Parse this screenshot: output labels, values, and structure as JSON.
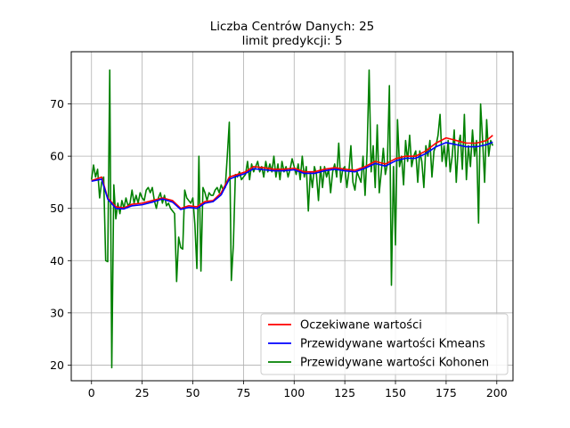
{
  "chart_data": {
    "type": "line",
    "title": "Liczba Centrów Danych: 25",
    "subtitle": "limit predykcji: 5",
    "xlabel": "",
    "ylabel": "",
    "xlim": [
      -10,
      208
    ],
    "ylim": [
      17,
      80
    ],
    "xticks": [
      0,
      25,
      50,
      75,
      100,
      125,
      150,
      175,
      200
    ],
    "yticks": [
      20,
      30,
      40,
      50,
      60,
      70
    ],
    "grid": true,
    "legend_position": "bottom-right",
    "series": [
      {
        "name": "Oczekiwane wartości",
        "color": "#ff0000",
        "points": [
          [
            0,
            55.3
          ],
          [
            5,
            56
          ],
          [
            8,
            52
          ],
          [
            12,
            50.3
          ],
          [
            16,
            50.1
          ],
          [
            20,
            50.8
          ],
          [
            25,
            51
          ],
          [
            30,
            51.5
          ],
          [
            35,
            52
          ],
          [
            40,
            51.5
          ],
          [
            44,
            50
          ],
          [
            48,
            50.5
          ],
          [
            52,
            50.3
          ],
          [
            56,
            51.3
          ],
          [
            60,
            51.5
          ],
          [
            64,
            53
          ],
          [
            68,
            56
          ],
          [
            72,
            56.5
          ],
          [
            76,
            57
          ],
          [
            80,
            58
          ],
          [
            85,
            57.8
          ],
          [
            90,
            57.5
          ],
          [
            95,
            57.5
          ],
          [
            100,
            57.7
          ],
          [
            105,
            57
          ],
          [
            110,
            57
          ],
          [
            115,
            57.5
          ],
          [
            120,
            57.8
          ],
          [
            125,
            57.5
          ],
          [
            130,
            57.3
          ],
          [
            135,
            58
          ],
          [
            140,
            59
          ],
          [
            145,
            58.5
          ],
          [
            150,
            59.5
          ],
          [
            155,
            60
          ],
          [
            160,
            60
          ],
          [
            165,
            61
          ],
          [
            170,
            62.5
          ],
          [
            175,
            63.5
          ],
          [
            180,
            63
          ],
          [
            185,
            62.5
          ],
          [
            190,
            62.5
          ],
          [
            195,
            63
          ],
          [
            198,
            64
          ]
        ]
      },
      {
        "name": "Przewidywane wartości Kmeans",
        "color": "#0000ff",
        "points": [
          [
            0,
            55.2
          ],
          [
            5,
            55.6
          ],
          [
            8,
            51.8
          ],
          [
            12,
            50
          ],
          [
            16,
            49.9
          ],
          [
            20,
            50.5
          ],
          [
            25,
            50.7
          ],
          [
            30,
            51.2
          ],
          [
            35,
            51.8
          ],
          [
            40,
            51.2
          ],
          [
            44,
            49.8
          ],
          [
            48,
            50.2
          ],
          [
            52,
            50
          ],
          [
            56,
            51
          ],
          [
            60,
            51.3
          ],
          [
            64,
            52.6
          ],
          [
            68,
            55.6
          ],
          [
            72,
            56.2
          ],
          [
            76,
            56.7
          ],
          [
            80,
            57.6
          ],
          [
            85,
            57.4
          ],
          [
            90,
            57.2
          ],
          [
            95,
            57.2
          ],
          [
            100,
            57.4
          ],
          [
            105,
            56.7
          ],
          [
            110,
            56.7
          ],
          [
            115,
            57.2
          ],
          [
            120,
            57.5
          ],
          [
            125,
            57.2
          ],
          [
            130,
            57
          ],
          [
            135,
            57.7
          ],
          [
            140,
            58.6
          ],
          [
            145,
            58.1
          ],
          [
            150,
            59.1
          ],
          [
            155,
            59.6
          ],
          [
            160,
            59.6
          ],
          [
            165,
            60.5
          ],
          [
            170,
            61.8
          ],
          [
            175,
            62.6
          ],
          [
            180,
            62.2
          ],
          [
            185,
            61.8
          ],
          [
            190,
            61.8
          ],
          [
            195,
            62.2
          ],
          [
            198,
            62.7
          ]
        ]
      },
      {
        "name": "Przewidywane wartości Kohonen",
        "color": "#008000",
        "points": [
          [
            0,
            55.5
          ],
          [
            1,
            58.3
          ],
          [
            2,
            56
          ],
          [
            3,
            57.5
          ],
          [
            4,
            52
          ],
          [
            5,
            55
          ],
          [
            6,
            56
          ],
          [
            7,
            40
          ],
          [
            8,
            39.8
          ],
          [
            9,
            76.5
          ],
          [
            10,
            19.5
          ],
          [
            11,
            54.5
          ],
          [
            12,
            48
          ],
          [
            13,
            51
          ],
          [
            14,
            49
          ],
          [
            15,
            51.5
          ],
          [
            16,
            50
          ],
          [
            17,
            52
          ],
          [
            18,
            50.5
          ],
          [
            19,
            51
          ],
          [
            20,
            53.5
          ],
          [
            21,
            51
          ],
          [
            22,
            52.5
          ],
          [
            23,
            51
          ],
          [
            24,
            53
          ],
          [
            25,
            52
          ],
          [
            26,
            51.5
          ],
          [
            27,
            53.5
          ],
          [
            28,
            54
          ],
          [
            29,
            53
          ],
          [
            30,
            54
          ],
          [
            31,
            51.5
          ],
          [
            32,
            50
          ],
          [
            33,
            52
          ],
          [
            34,
            53
          ],
          [
            35,
            51
          ],
          [
            36,
            52.5
          ],
          [
            37,
            50.5
          ],
          [
            38,
            51
          ],
          [
            39,
            50
          ],
          [
            40,
            49.5
          ],
          [
            41,
            49
          ],
          [
            42,
            36
          ],
          [
            43,
            44.5
          ],
          [
            44,
            42.5
          ],
          [
            45,
            42.2
          ],
          [
            46,
            53.5
          ],
          [
            47,
            52
          ],
          [
            48,
            51.5
          ],
          [
            49,
            51
          ],
          [
            50,
            52
          ],
          [
            51,
            47
          ],
          [
            52,
            38.5
          ],
          [
            53,
            60
          ],
          [
            54,
            38
          ],
          [
            55,
            54
          ],
          [
            56,
            53
          ],
          [
            57,
            51.5
          ],
          [
            58,
            53
          ],
          [
            59,
            52.5
          ],
          [
            60,
            52.5
          ],
          [
            61,
            53.5
          ],
          [
            62,
            54
          ],
          [
            63,
            53
          ],
          [
            64,
            54.5
          ],
          [
            65,
            53.5
          ],
          [
            66,
            54
          ],
          [
            67,
            60
          ],
          [
            68,
            66.5
          ],
          [
            69,
            36.2
          ],
          [
            70,
            43
          ],
          [
            71,
            56.5
          ],
          [
            72,
            56
          ],
          [
            73,
            57
          ],
          [
            74,
            55.5
          ],
          [
            75,
            56
          ],
          [
            76,
            56.5
          ],
          [
            77,
            59
          ],
          [
            78,
            55.5
          ],
          [
            79,
            58.5
          ],
          [
            80,
            57
          ],
          [
            81,
            58
          ],
          [
            82,
            59
          ],
          [
            83,
            57
          ],
          [
            84,
            58
          ],
          [
            85,
            56
          ],
          [
            86,
            59
          ],
          [
            87,
            57
          ],
          [
            88,
            58.5
          ],
          [
            89,
            57
          ],
          [
            90,
            60
          ],
          [
            91,
            56
          ],
          [
            92,
            58.5
          ],
          [
            93,
            55.5
          ],
          [
            94,
            59
          ],
          [
            95,
            57
          ],
          [
            96,
            58
          ],
          [
            97,
            56
          ],
          [
            98,
            57.5
          ],
          [
            99,
            59.5
          ],
          [
            100,
            58
          ],
          [
            101,
            56.5
          ],
          [
            102,
            58.5
          ],
          [
            103,
            55.5
          ],
          [
            104,
            60
          ],
          [
            105,
            56
          ],
          [
            106,
            58
          ],
          [
            107,
            49.5
          ],
          [
            108,
            57
          ],
          [
            109,
            54
          ],
          [
            110,
            58
          ],
          [
            111,
            56.5
          ],
          [
            112,
            51.5
          ],
          [
            113,
            58
          ],
          [
            114,
            54
          ],
          [
            115,
            58
          ],
          [
            116,
            56
          ],
          [
            117,
            57.5
          ],
          [
            118,
            53
          ],
          [
            119,
            57
          ],
          [
            120,
            58.5
          ],
          [
            121,
            56
          ],
          [
            122,
            62.5
          ],
          [
            123,
            55
          ],
          [
            124,
            57.5
          ],
          [
            125,
            58
          ],
          [
            126,
            54
          ],
          [
            127,
            57
          ],
          [
            128,
            62
          ],
          [
            129,
            55
          ],
          [
            130,
            53.5
          ],
          [
            131,
            57
          ],
          [
            132,
            56
          ],
          [
            133,
            55
          ],
          [
            134,
            60
          ],
          [
            135,
            52.5
          ],
          [
            136,
            61
          ],
          [
            137,
            76.5
          ],
          [
            138,
            57
          ],
          [
            139,
            62
          ],
          [
            140,
            54
          ],
          [
            141,
            66
          ],
          [
            142,
            53
          ],
          [
            143,
            57
          ],
          [
            144,
            61.5
          ],
          [
            145,
            56.5
          ],
          [
            146,
            58.5
          ],
          [
            147,
            73.5
          ],
          [
            148,
            35.3
          ],
          [
            149,
            58
          ],
          [
            150,
            43
          ],
          [
            151,
            67
          ],
          [
            152,
            58
          ],
          [
            153,
            60
          ],
          [
            154,
            54.5
          ],
          [
            155,
            63
          ],
          [
            156,
            59
          ],
          [
            157,
            64
          ],
          [
            158,
            58
          ],
          [
            159,
            60
          ],
          [
            160,
            61
          ],
          [
            161,
            55
          ],
          [
            162,
            61
          ],
          [
            163,
            59
          ],
          [
            164,
            54
          ],
          [
            165,
            62
          ],
          [
            166,
            60
          ],
          [
            167,
            63
          ],
          [
            168,
            56
          ],
          [
            169,
            61
          ],
          [
            170,
            62
          ],
          [
            171,
            64
          ],
          [
            172,
            68
          ],
          [
            173,
            59
          ],
          [
            174,
            62
          ],
          [
            175,
            58
          ],
          [
            176,
            63
          ],
          [
            177,
            57
          ],
          [
            178,
            60
          ],
          [
            179,
            65
          ],
          [
            180,
            55
          ],
          [
            181,
            62
          ],
          [
            182,
            64
          ],
          [
            183,
            57.5
          ],
          [
            184,
            68
          ],
          [
            185,
            55.5
          ],
          [
            186,
            62
          ],
          [
            187,
            58
          ],
          [
            188,
            65
          ],
          [
            189,
            60
          ],
          [
            190,
            63
          ],
          [
            191,
            47.2
          ],
          [
            192,
            70
          ],
          [
            193,
            63
          ],
          [
            194,
            55
          ],
          [
            195,
            67
          ],
          [
            196,
            60
          ],
          [
            197,
            63
          ],
          [
            198,
            62
          ]
        ]
      }
    ]
  }
}
